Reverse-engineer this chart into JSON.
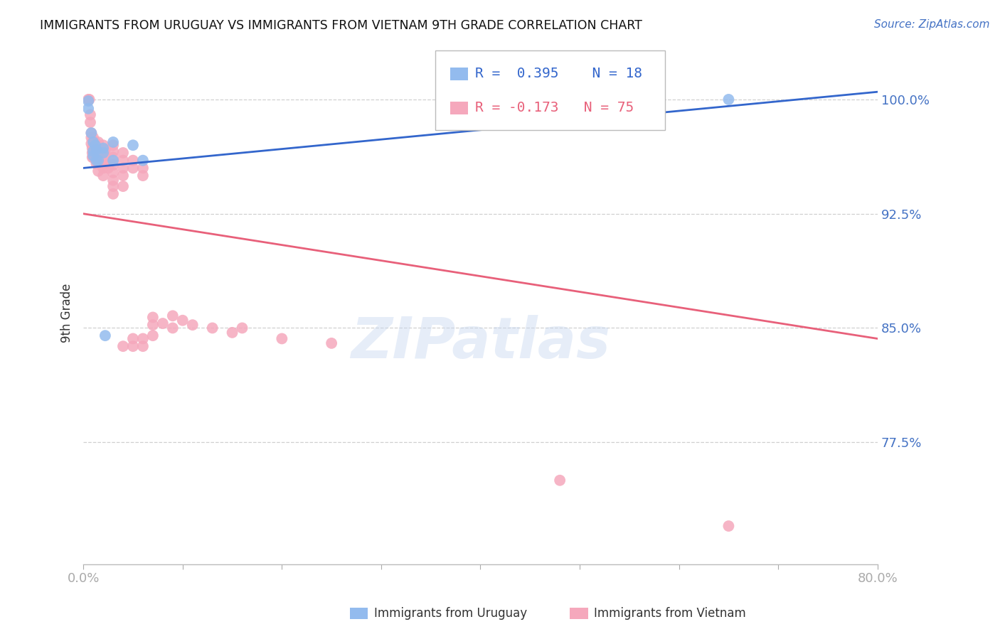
{
  "title": "IMMIGRANTS FROM URUGUAY VS IMMIGRANTS FROM VIETNAM 9TH GRADE CORRELATION CHART",
  "source": "Source: ZipAtlas.com",
  "ylabel": "9th Grade",
  "watermark": "ZIPatlas",
  "x_min": 0.0,
  "x_max": 0.08,
  "y_min": 0.695,
  "y_max": 1.025,
  "x_ticks": [
    0.0,
    0.01,
    0.02,
    0.03,
    0.04,
    0.05,
    0.06,
    0.07,
    0.08
  ],
  "x_tick_labels": [
    "0.0%",
    "",
    "",
    "",
    "",
    "",
    "",
    "",
    "80.0%"
  ],
  "y_ticks": [
    0.775,
    0.85,
    0.925,
    1.0
  ],
  "y_tick_labels": [
    "77.5%",
    "85.0%",
    "92.5%",
    "100.0%"
  ],
  "y_tick_color": "#4472c4",
  "x_tick_color": "#4472c4",
  "grid_color": "#d0d0d0",
  "background_color": "#ffffff",
  "uruguay_color": "#93bbee",
  "vietnam_color": "#f5a8bc",
  "uruguay_line_color": "#3366cc",
  "vietnam_line_color": "#e8607a",
  "uruguay_R": 0.395,
  "uruguay_N": 18,
  "vietnam_R": -0.173,
  "vietnam_N": 75,
  "uruguay_line_x0": 0.0,
  "uruguay_line_y0": 0.955,
  "uruguay_line_x1": 0.08,
  "uruguay_line_y1": 1.005,
  "vietnam_line_x0": 0.0,
  "vietnam_line_y0": 0.925,
  "vietnam_line_x1": 0.08,
  "vietnam_line_y1": 0.843,
  "uruguay_x": [
    0.0005,
    0.0005,
    0.0008,
    0.001,
    0.001,
    0.001,
    0.0012,
    0.0013,
    0.0013,
    0.0015,
    0.002,
    0.002,
    0.0022,
    0.003,
    0.003,
    0.005,
    0.006,
    0.065
  ],
  "uruguay_y": [
    0.999,
    0.994,
    0.978,
    0.972,
    0.966,
    0.963,
    0.97,
    0.967,
    0.96,
    0.96,
    0.968,
    0.965,
    0.845,
    0.972,
    0.96,
    0.97,
    0.96,
    1.0
  ],
  "vietnam_x": [
    0.0005,
    0.0006,
    0.0007,
    0.0007,
    0.0008,
    0.0008,
    0.0008,
    0.0009,
    0.0009,
    0.0009,
    0.001,
    0.001,
    0.001,
    0.001,
    0.001,
    0.001,
    0.0012,
    0.0012,
    0.0012,
    0.0013,
    0.0013,
    0.0013,
    0.0014,
    0.0014,
    0.0015,
    0.0015,
    0.0015,
    0.0015,
    0.0015,
    0.002,
    0.002,
    0.002,
    0.002,
    0.002,
    0.0022,
    0.0022,
    0.0022,
    0.0025,
    0.003,
    0.003,
    0.003,
    0.003,
    0.003,
    0.003,
    0.003,
    0.003,
    0.004,
    0.004,
    0.004,
    0.004,
    0.004,
    0.004,
    0.005,
    0.005,
    0.005,
    0.005,
    0.006,
    0.006,
    0.006,
    0.006,
    0.007,
    0.007,
    0.007,
    0.008,
    0.009,
    0.009,
    0.01,
    0.011,
    0.013,
    0.015,
    0.016,
    0.02,
    0.025,
    0.048,
    0.065
  ],
  "vietnam_y": [
    1.0,
    1.0,
    0.99,
    0.985,
    0.978,
    0.975,
    0.971,
    0.968,
    0.965,
    0.962,
    0.975,
    0.972,
    0.97,
    0.967,
    0.965,
    0.962,
    0.972,
    0.968,
    0.963,
    0.968,
    0.963,
    0.958,
    0.965,
    0.96,
    0.972,
    0.967,
    0.963,
    0.958,
    0.953,
    0.97,
    0.965,
    0.96,
    0.955,
    0.95,
    0.967,
    0.963,
    0.958,
    0.955,
    0.97,
    0.966,
    0.962,
    0.957,
    0.952,
    0.947,
    0.943,
    0.938,
    0.965,
    0.96,
    0.955,
    0.95,
    0.943,
    0.838,
    0.96,
    0.955,
    0.843,
    0.838,
    0.955,
    0.95,
    0.843,
    0.838,
    0.857,
    0.852,
    0.845,
    0.853,
    0.858,
    0.85,
    0.855,
    0.852,
    0.85,
    0.847,
    0.85,
    0.843,
    0.84,
    0.75,
    0.72
  ]
}
